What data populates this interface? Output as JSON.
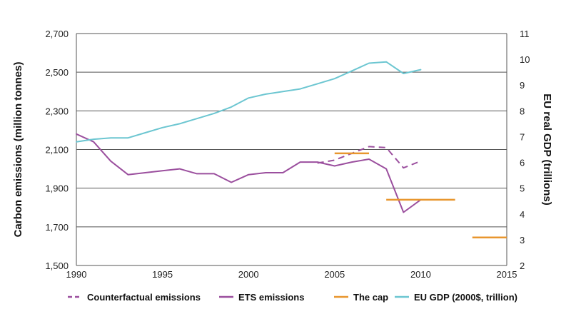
{
  "chart_data": {
    "type": "line",
    "left_axis": {
      "label": "Carbon emissions (million tonnes)",
      "ylim": [
        1500,
        2700
      ],
      "ticks": [
        1500,
        1700,
        1900,
        2100,
        2300,
        2500,
        2700
      ],
      "tick_labels": [
        "1,500",
        "1,700",
        "1,900",
        "2,100",
        "2,300",
        "2,500",
        "2,700"
      ]
    },
    "right_axis": {
      "label": "EU real GDP (trillions)",
      "ylim": [
        2,
        11
      ],
      "ticks": [
        2,
        3,
        4,
        5,
        6,
        7,
        8,
        9,
        10,
        11
      ],
      "tick_labels": [
        "2",
        "3",
        "4",
        "5",
        "6",
        "7",
        "8",
        "9",
        "10",
        "11"
      ]
    },
    "x_axis": {
      "xlim": [
        1990,
        2015
      ],
      "ticks": [
        1990,
        1995,
        2000,
        2005,
        2010,
        2015
      ],
      "tick_labels": [
        "1990",
        "1995",
        "2000",
        "2005",
        "2010",
        "2015"
      ]
    },
    "grid": "horizontal",
    "legend_position": "bottom",
    "series": [
      {
        "name": "Counterfactual emissions",
        "axis": "left",
        "style": "dashed",
        "color": "#9b4f9e",
        "x": [
          2004,
          2005,
          2006,
          2007,
          2008,
          2009,
          2010
        ],
        "y": [
          2030,
          2045,
          2080,
          2115,
          2110,
          2005,
          2040
        ]
      },
      {
        "name": "ETS emissions",
        "axis": "left",
        "style": "solid",
        "color": "#9b4f9e",
        "x": [
          1990,
          1991,
          1992,
          1993,
          1994,
          1995,
          1996,
          1997,
          1998,
          1999,
          2000,
          2001,
          2002,
          2003,
          2004,
          2005,
          2006,
          2007,
          2008,
          2009,
          2010
        ],
        "y": [
          2180,
          2140,
          2040,
          1970,
          1980,
          1990,
          2000,
          1975,
          1975,
          1930,
          1970,
          1980,
          1980,
          2035,
          2035,
          2015,
          2035,
          2050,
          2000,
          1775,
          1840
        ]
      },
      {
        "name": "The cap",
        "axis": "left",
        "style": "segments",
        "color": "#e8962e",
        "segments": [
          {
            "x": [
              2005,
              2007
            ],
            "y": 2080
          },
          {
            "x": [
              2008,
              2012
            ],
            "y": 1840
          },
          {
            "x": [
              2013,
              2015
            ],
            "y": 1645
          }
        ]
      },
      {
        "name": "EU GDP (2000$, trillion)",
        "axis": "right",
        "style": "solid",
        "color": "#6cc6d1",
        "x": [
          1990,
          1991,
          1992,
          1993,
          1994,
          1995,
          1996,
          1997,
          1998,
          1999,
          2000,
          2001,
          2002,
          2003,
          2004,
          2005,
          2006,
          2007,
          2008,
          2009,
          2010
        ],
        "y": [
          6.8,
          6.9,
          6.95,
          6.95,
          7.15,
          7.35,
          7.5,
          7.7,
          7.9,
          8.15,
          8.5,
          8.65,
          8.75,
          8.85,
          9.05,
          9.25,
          9.55,
          9.85,
          9.9,
          9.45,
          9.6
        ]
      }
    ]
  }
}
